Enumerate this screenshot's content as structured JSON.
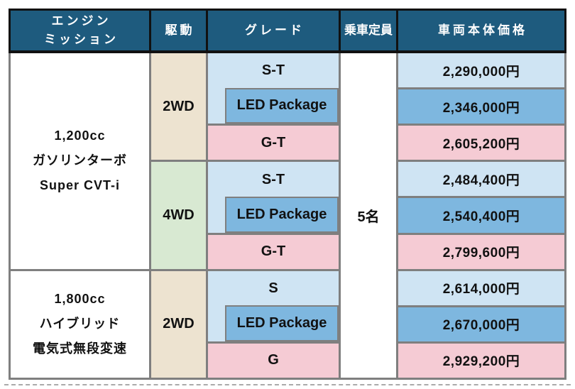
{
  "header": {
    "engine_line1": "エンジン",
    "engine_line2": "ミッション",
    "drive": "駆動",
    "grade": "グレード",
    "capacity": "乗車定員",
    "price": "車両本体価格"
  },
  "capacity_value": "5名",
  "engines": [
    {
      "name_lines": [
        "1,200cc",
        "ガソリンターボ",
        "Super CVT-i"
      ],
      "drives": [
        {
          "label": "2WD",
          "rows": [
            {
              "grade": "S-T",
              "price": "2,290,000円"
            },
            {
              "grade": "LED Package",
              "price": "2,346,000円"
            },
            {
              "grade": "G-T",
              "price": "2,605,200円"
            }
          ]
        },
        {
          "label": "4WD",
          "rows": [
            {
              "grade": "S-T",
              "price": "2,484,400円"
            },
            {
              "grade": "LED Package",
              "price": "2,540,400円"
            },
            {
              "grade": "G-T",
              "price": "2,799,600円"
            }
          ]
        }
      ]
    },
    {
      "name_lines": [
        "1,800cc",
        "ハイブリッド",
        "電気式無段変速"
      ],
      "drives": [
        {
          "label": "2WD",
          "rows": [
            {
              "grade": "S",
              "price": "2,614,000円"
            },
            {
              "grade": "LED Package",
              "price": "2,670,000円"
            },
            {
              "grade": "G",
              "price": "2,929,200円"
            }
          ]
        }
      ]
    }
  ],
  "colors": {
    "header_bg": "#1E5B7E",
    "light_blue": "#CFE4F3",
    "medium_blue": "#7EB7DF",
    "pink": "#F5CBD4",
    "beige": "#EDE3D0",
    "green": "#D8E9D2",
    "border_gray": "#7F7F7F",
    "border_black": "#111111"
  }
}
